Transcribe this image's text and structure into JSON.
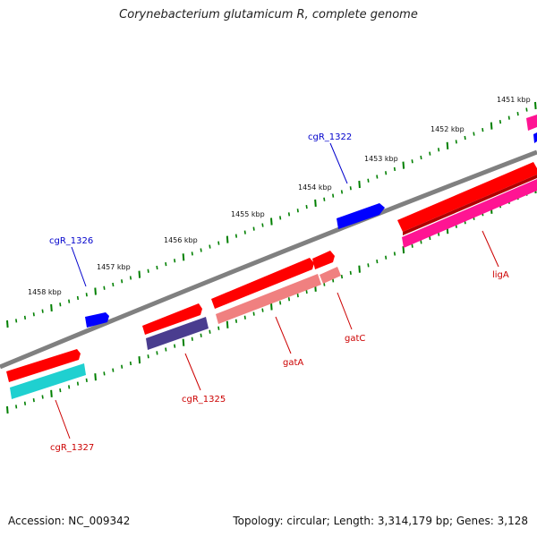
{
  "title": "Corynebacterium glutamicum R, complete genome",
  "footer": {
    "accession": "Accession: NC_009342",
    "summary": "Topology: circular; Length: 3,314,179 bp; Genes: 3,128"
  },
  "scale_labels": [
    "1451 kbp",
    "1452 kbp",
    "1453 kbp",
    "1454 kbp",
    "1455 kbp",
    "1456 kbp",
    "1457 kbp",
    "1458 kbp"
  ],
  "genes": [
    {
      "name": "cgR_1322",
      "color": "#0000cc"
    },
    {
      "name": "cgR_1326",
      "color": "#0000cc"
    },
    {
      "name": "ligA",
      "color": "#cc0000"
    },
    {
      "name": "gatC",
      "color": "#cc0000"
    },
    {
      "name": "gatA",
      "color": "#cc0000"
    },
    {
      "name": "cgR_1325",
      "color": "#cc0000"
    },
    {
      "name": "cgR_1327",
      "color": "#cc0000"
    }
  ],
  "colors": {
    "backbone": "#808080",
    "red": "#ff0000",
    "blue": "#0000ff",
    "magenta": "#ff1493",
    "cyan": "#1fd0d0",
    "navy": "#4a3d8f",
    "salmon": "#f08080",
    "tick": "#008000"
  }
}
